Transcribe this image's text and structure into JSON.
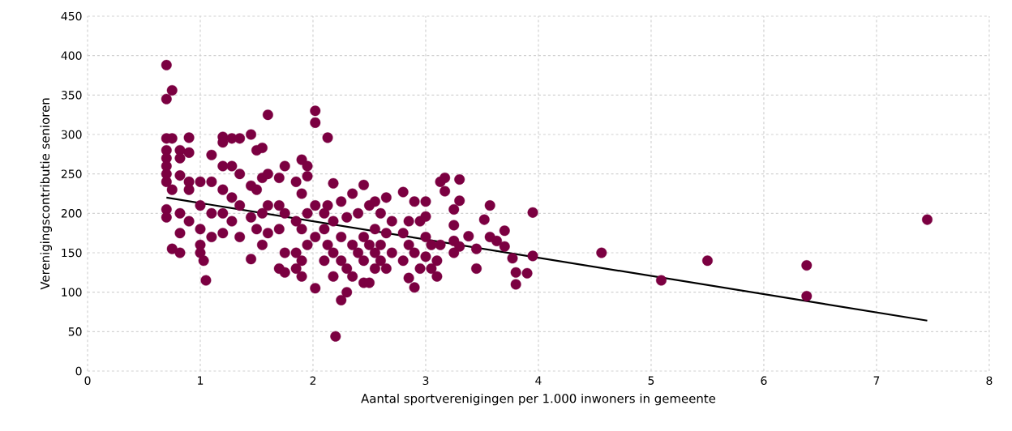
{
  "chart_data": {
    "type": "scatter",
    "xlabel": "Aantal sportverenigingen per 1.000 inwoners in gemeente",
    "ylabel": "Verenigingscontributie senioren",
    "xlim": [
      0,
      8
    ],
    "ylim": [
      0,
      450
    ],
    "xticks": [
      0,
      1,
      2,
      3,
      4,
      5,
      6,
      7,
      8
    ],
    "yticks": [
      0,
      50,
      100,
      150,
      200,
      250,
      300,
      350,
      400,
      450
    ],
    "grid": true,
    "series": [
      {
        "color": "#7b0041",
        "marker": "circle",
        "x": [
          0.7,
          0.7,
          0.7,
          0.7,
          0.7,
          0.7,
          0.7,
          0.7,
          0.7,
          0.7,
          0.75,
          0.75,
          0.75,
          0.75,
          0.82,
          0.82,
          0.82,
          0.82,
          0.82,
          0.82,
          0.9,
          0.9,
          0.9,
          0.9,
          0.9,
          1.0,
          1.0,
          1.0,
          1.0,
          1.0,
          1.03,
          1.05,
          1.1,
          1.1,
          1.1,
          1.1,
          1.2,
          1.2,
          1.2,
          1.2,
          1.2,
          1.2,
          1.28,
          1.28,
          1.28,
          1.28,
          1.35,
          1.35,
          1.35,
          1.35,
          1.45,
          1.45,
          1.45,
          1.45,
          1.5,
          1.5,
          1.5,
          1.55,
          1.55,
          1.55,
          1.55,
          1.6,
          1.6,
          1.6,
          1.6,
          1.7,
          1.7,
          1.7,
          1.7,
          1.75,
          1.75,
          1.75,
          1.75,
          1.85,
          1.85,
          1.85,
          1.85,
          1.9,
          1.9,
          1.9,
          1.9,
          1.9,
          1.95,
          1.95,
          1.95,
          1.95,
          2.02,
          2.02,
          2.02,
          2.02,
          2.02,
          2.1,
          2.1,
          2.1,
          2.13,
          2.13,
          2.13,
          2.18,
          2.18,
          2.18,
          2.18,
          2.2,
          2.25,
          2.25,
          2.25,
          2.25,
          2.3,
          2.3,
          2.3,
          2.35,
          2.35,
          2.35,
          2.4,
          2.4,
          2.45,
          2.45,
          2.45,
          2.45,
          2.5,
          2.5,
          2.5,
          2.55,
          2.55,
          2.55,
          2.55,
          2.6,
          2.6,
          2.6,
          2.65,
          2.65,
          2.65,
          2.7,
          2.7,
          2.8,
          2.8,
          2.8,
          2.85,
          2.85,
          2.85,
          2.9,
          2.9,
          2.9,
          2.95,
          2.95,
          3.0,
          3.0,
          3.0,
          3.0,
          3.05,
          3.05,
          3.1,
          3.1,
          3.13,
          3.13,
          3.17,
          3.17,
          3.25,
          3.25,
          3.25,
          3.25,
          3.3,
          3.3,
          3.3,
          3.38,
          3.45,
          3.45,
          3.52,
          3.57,
          3.57,
          3.63,
          3.7,
          3.7,
          3.77,
          3.8,
          3.8,
          3.9,
          3.95,
          3.95,
          4.56,
          5.09,
          5.5,
          6.38,
          6.38,
          7.45
        ],
        "values": [
          388,
          345,
          295,
          280,
          270,
          260,
          250,
          240,
          205,
          195,
          356,
          295,
          230,
          155,
          280,
          270,
          248,
          200,
          175,
          150,
          296,
          277,
          240,
          230,
          190,
          240,
          210,
          180,
          160,
          150,
          140,
          115,
          274,
          240,
          200,
          170,
          297,
          290,
          260,
          230,
          200,
          175,
          295,
          260,
          220,
          190,
          295,
          250,
          210,
          170,
          300,
          235,
          195,
          142,
          280,
          230,
          180,
          283,
          245,
          200,
          160,
          325,
          250,
          210,
          175,
          245,
          210,
          180,
          130,
          260,
          200,
          150,
          125,
          240,
          190,
          150,
          130,
          268,
          225,
          180,
          140,
          120,
          260,
          247,
          200,
          160,
          330,
          315,
          210,
          170,
          105,
          200,
          180,
          140,
          296,
          210,
          160,
          238,
          190,
          150,
          120,
          44,
          215,
          170,
          140,
          90,
          195,
          130,
          100,
          225,
          160,
          120,
          200,
          150,
          236,
          170,
          140,
          112,
          210,
          160,
          112,
          215,
          180,
          150,
          130,
          200,
          160,
          140,
          220,
          175,
          130,
          190,
          150,
          227,
          175,
          140,
          190,
          160,
          118,
          215,
          150,
          106,
          190,
          130,
          215,
          196,
          170,
          145,
          160,
          130,
          120,
          140,
          240,
          160,
          245,
          228,
          205,
          185,
          165,
          150,
          243,
          216,
          158,
          171,
          155,
          130,
          192,
          210,
          170,
          165,
          178,
          158,
          143,
          125,
          110,
          124,
          201,
          146,
          150,
          115,
          140,
          134,
          95,
          192
        ]
      },
      {
        "type": "line",
        "color": "#000000",
        "marker": "none",
        "x": [
          0.7,
          7.45
        ],
        "values": [
          220,
          64
        ]
      }
    ]
  }
}
